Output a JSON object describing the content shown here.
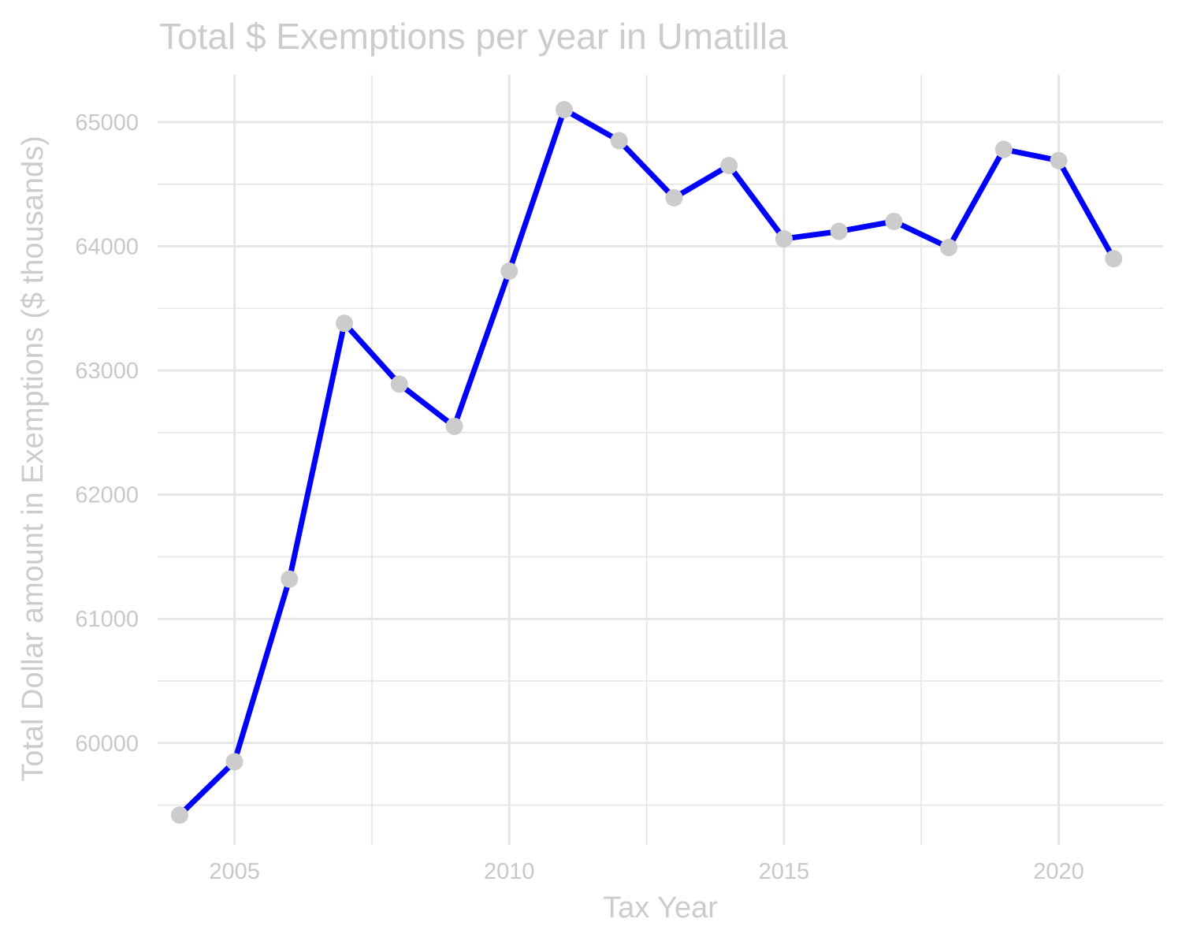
{
  "chart_data": {
    "type": "line",
    "title": "Total $ Exemptions per year in Umatilla",
    "xlabel": "Tax Year",
    "ylabel": "Total Dollar amount in Exemptions ($ thousands)",
    "x": [
      2004,
      2005,
      2006,
      2007,
      2008,
      2009,
      2010,
      2011,
      2012,
      2013,
      2014,
      2015,
      2016,
      2017,
      2018,
      2019,
      2020,
      2021
    ],
    "series": [
      {
        "values": [
          59420,
          59850,
          61320,
          63380,
          62890,
          62550,
          63800,
          65100,
          64850,
          64390,
          64650,
          64060,
          64120,
          64200,
          63990,
          64780,
          64690,
          63900
        ]
      }
    ],
    "xlim": [
      2003.6,
      2021.9
    ],
    "ylim": [
      59180,
      65380
    ],
    "x_ticks": [
      2005,
      2010,
      2015,
      2020
    ],
    "x_tick_labels": [
      "2005",
      "2010",
      "2015",
      "2020"
    ],
    "y_ticks": [
      60000,
      61000,
      62000,
      63000,
      64000,
      65000
    ],
    "y_tick_labels": [
      "60000",
      "61000",
      "62000",
      "63000",
      "64000",
      "65000"
    ],
    "grid": true,
    "legend": "none",
    "colors": {
      "line": "#0000ff",
      "points": "#cccccc",
      "grid": "#e6e6e6",
      "text": "#cccccc"
    }
  }
}
